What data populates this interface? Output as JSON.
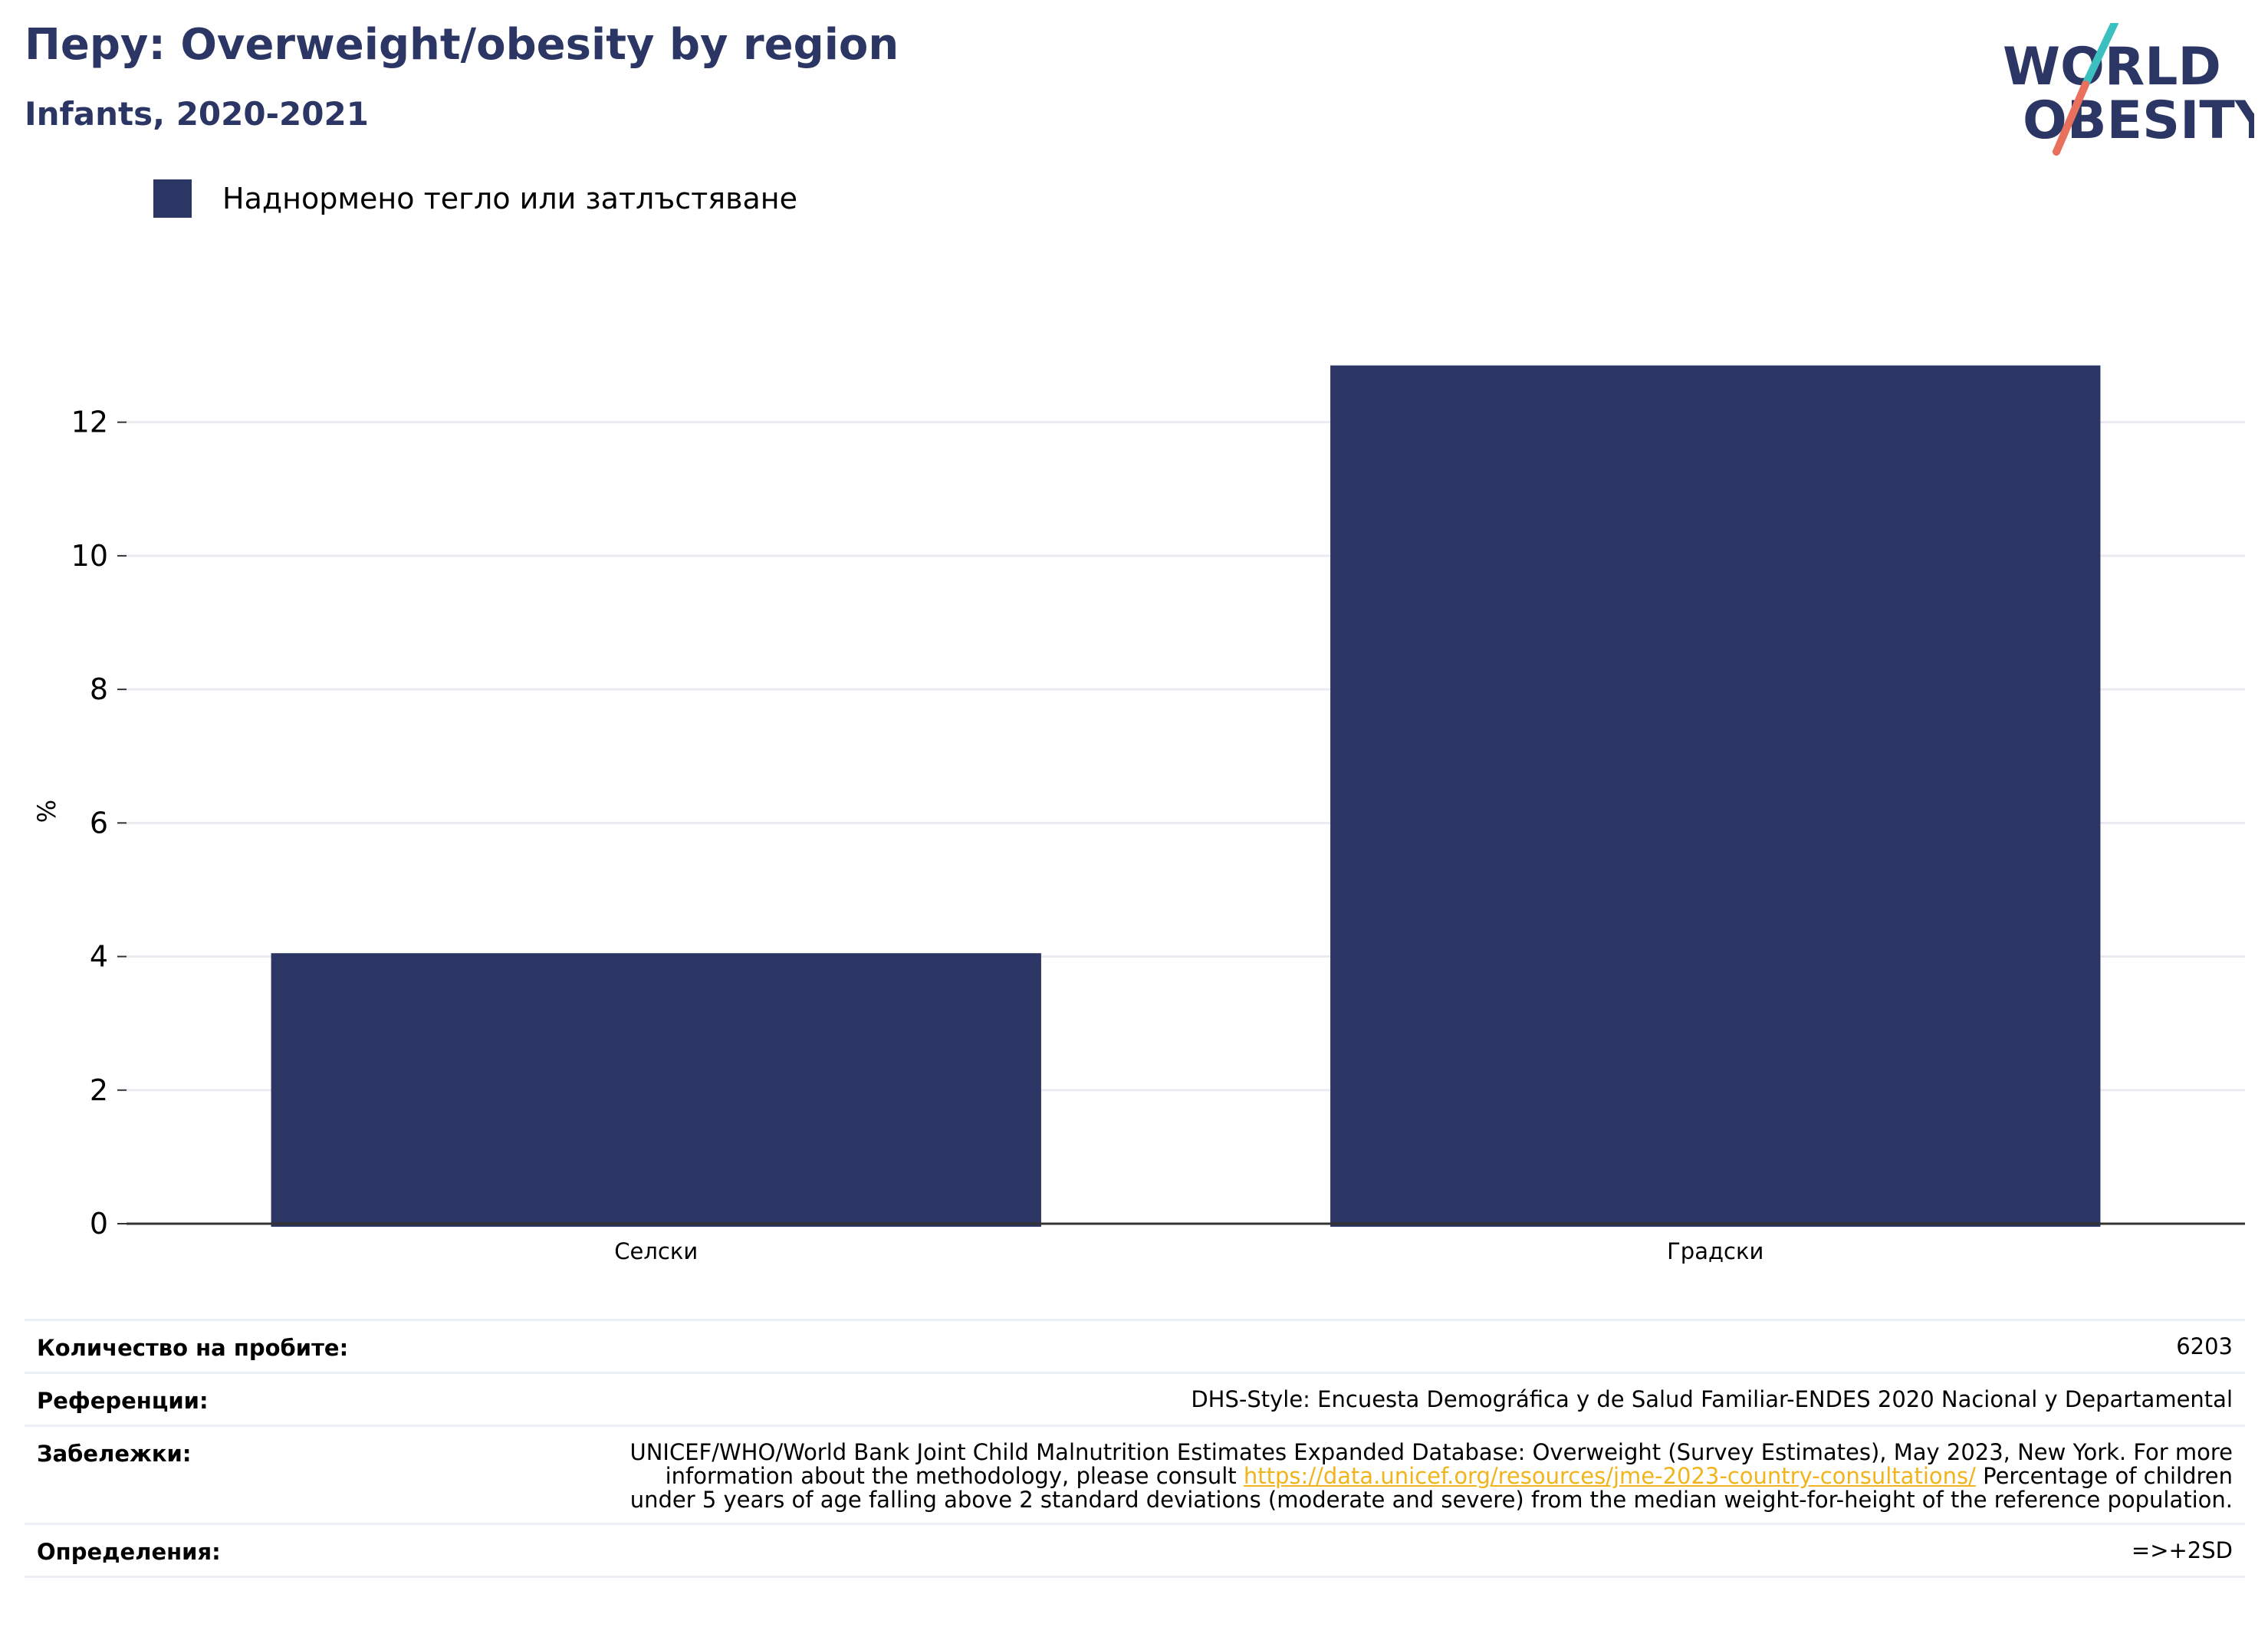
{
  "header": {
    "title": "Перу: Overweight/obesity by region",
    "subtitle": "Infants, 2020-2021"
  },
  "logo": {
    "text_line1": "WORLD",
    "text_line2": "OBESITY",
    "colors": {
      "text": "#2b3664",
      "slash_top": "#3bbfbf",
      "slash_bottom": "#e8705d"
    }
  },
  "legend": {
    "items": [
      {
        "label": "Наднормено тегло или затлъстяване",
        "color": "#2b3664"
      }
    ]
  },
  "chart_data": {
    "type": "bar",
    "categories": [
      "Селски",
      "Градски"
    ],
    "series": [
      {
        "name": "Наднормено тегло или затлъстяване",
        "values": [
          4.05,
          12.85
        ],
        "color": "#2b3664"
      }
    ],
    "title": "Перу: Overweight/obesity by region",
    "subtitle": "Infants, 2020-2021",
    "xlabel": "",
    "ylabel": "%",
    "ylim": [
      0,
      13.5
    ],
    "yticks": [
      0,
      2,
      4,
      6,
      8,
      10,
      12
    ],
    "grid": true,
    "legend_position": "top-left"
  },
  "info": {
    "sample": {
      "key": "Количество на пробите:",
      "value": "6203"
    },
    "references": {
      "key": "Референции:",
      "value": "DHS-Style: Encuesta Demográfica y de Salud Familiar-ENDES 2020 Nacional y Departamental"
    },
    "notes": {
      "key": "Забележки:",
      "text_before": "UNICEF/WHO/World Bank Joint Child Malnutrition Estimates Expanded Database: Overweight (Survey Estimates), May 2023, New York. For more information about the methodology, please consult ",
      "link": "https://data.unicef.org/resources/jme-2023-country-consultations/",
      "text_after": " Percentage of children under 5 years of age falling above 2 standard deviations (moderate and severe) from the median weight-for-height of the reference population."
    },
    "definitions": {
      "key": "Определения:",
      "value": "=>+2SD"
    }
  }
}
